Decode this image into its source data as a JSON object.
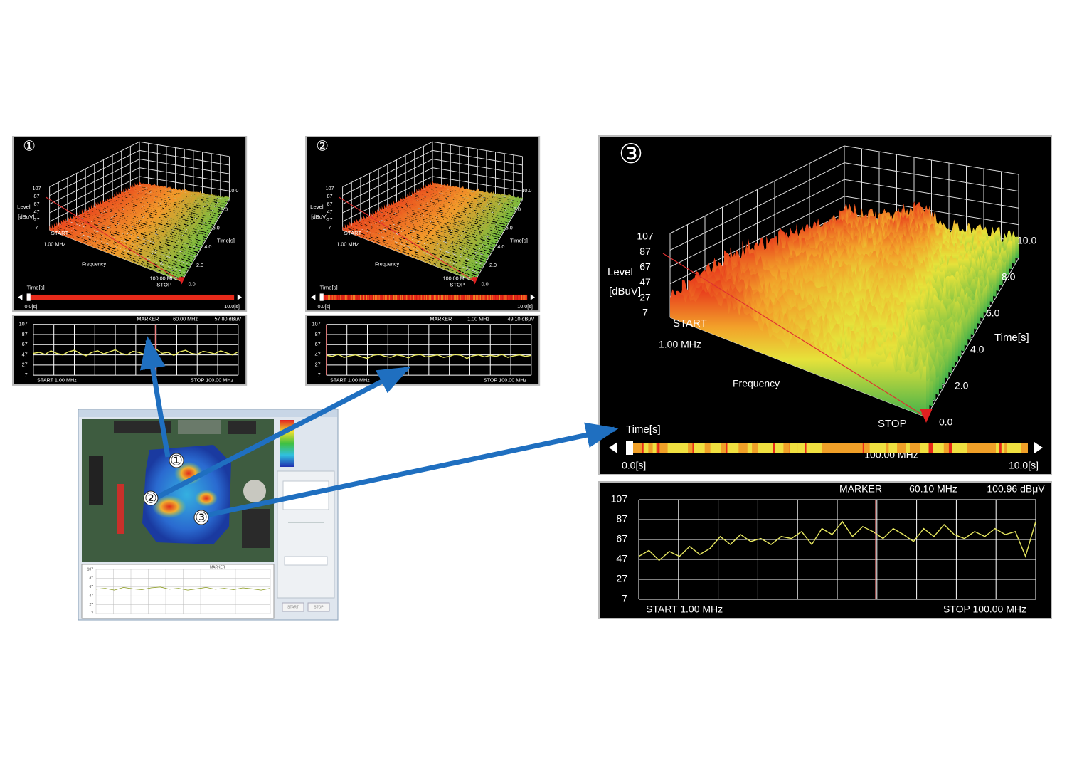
{
  "panels": [
    {
      "badge": "①",
      "level_label": "Level",
      "level_unit": "[dBuV]",
      "level_ticks": [
        107,
        87,
        67,
        47,
        27,
        7
      ],
      "start": "START",
      "start_freq": "1.00 MHz",
      "frequency_label": "Frequency",
      "stop": "STOP",
      "stop_freq": "100.00 MHz",
      "time_label": "Time[s]",
      "time_ticks": [
        {
          "value": 10,
          "label": "10.0"
        },
        {
          "value": 8,
          "label": "8.0"
        },
        {
          "value": 6,
          "label": "6.0"
        },
        {
          "value": 4,
          "label": "4.0"
        },
        {
          "value": 2,
          "label": "2.0"
        },
        {
          "value": 0,
          "label": "0.0"
        }
      ],
      "timebar_label": "Time[s]",
      "time_start": "0.0[s]",
      "time_end": "10.0[s]",
      "spectrum": {
        "marker": "MARKER",
        "marker_freq": {
          "value": 60,
          "label": "60.00 MHz"
        },
        "marker_level": "57.80 dBuV",
        "start": "START   1.00 MHz",
        "stop": "STOP   100.00 MHz",
        "xlim": [
          1,
          100
        ],
        "ylim": [
          7,
          107
        ],
        "yticks": [
          107,
          87,
          67,
          47,
          27,
          7
        ],
        "values": [
          50,
          52,
          48,
          55,
          50,
          47,
          53,
          56,
          50,
          45,
          52,
          55,
          49,
          53,
          57,
          50,
          47,
          54,
          52,
          48,
          55,
          58,
          50,
          52,
          46,
          53,
          56,
          50,
          48,
          54,
          52,
          49,
          55,
          51,
          47,
          53
        ]
      }
    },
    {
      "badge": "②",
      "level_label": "Level",
      "level_unit": "[dBuV]",
      "level_ticks": [
        107,
        87,
        67,
        47,
        27,
        7
      ],
      "start": "START",
      "start_freq": "1.00 MHz",
      "frequency_label": "Frequency",
      "stop": "STOP",
      "stop_freq": "100.00 MHz",
      "time_label": "Time[s]",
      "time_ticks": [
        {
          "value": 10,
          "label": "10.0"
        },
        {
          "value": 8,
          "label": "8.0"
        },
        {
          "value": 6,
          "label": "6.0"
        },
        {
          "value": 4,
          "label": "4.0"
        },
        {
          "value": 2,
          "label": "2.0"
        },
        {
          "value": 0,
          "label": "0.0"
        }
      ],
      "timebar_label": "Time[s]",
      "time_start": "0.0[s]",
      "time_end": "10.0[s]",
      "spectrum": {
        "marker": "MARKER",
        "marker_freq": {
          "value": 1,
          "label": "1.00 MHz"
        },
        "marker_level": "49.10 dBμV",
        "start": "START   1.00 MHz",
        "stop": "STOP   100.00 MHz",
        "xlim": [
          1,
          100
        ],
        "ylim": [
          7,
          107
        ],
        "yticks": [
          107,
          87,
          67,
          47,
          27,
          7
        ],
        "values": [
          46,
          44,
          48,
          42,
          45,
          47,
          43,
          40,
          46,
          48,
          44,
          42,
          47,
          45,
          41,
          46,
          48,
          43,
          45,
          47,
          42,
          44,
          48,
          46,
          40,
          45,
          47,
          43,
          46,
          44,
          48,
          42,
          45,
          47,
          44,
          46
        ]
      }
    },
    {
      "badge": "③",
      "level_label": "Level",
      "level_unit": "[dBuV]",
      "level_ticks": [
        107,
        87,
        67,
        47,
        27,
        7
      ],
      "start": "START",
      "start_freq": "1.00 MHz",
      "frequency_label": "Frequency",
      "stop": "STOP",
      "stop_freq": "100.00 MHz",
      "time_label": "Time[s]",
      "time_ticks": [
        {
          "value": 10,
          "label": "10.0"
        },
        {
          "value": 8,
          "label": "8.0"
        },
        {
          "value": 6,
          "label": "6.0"
        },
        {
          "value": 4,
          "label": "4.0"
        },
        {
          "value": 2,
          "label": "2.0"
        },
        {
          "value": 0,
          "label": "0.0"
        }
      ],
      "timebar_label": "Time[s]",
      "time_start": "0.0[s]",
      "time_end": "10.0[s]",
      "spectrum": {
        "marker": "MARKER",
        "marker_freq": {
          "value": 60.1,
          "label": "60.10 MHz"
        },
        "marker_level": "100.96 dBμV",
        "start": "START   1.00 MHz",
        "stop": "STOP   100.00 MHz",
        "xlim": [
          1,
          100
        ],
        "ylim": [
          7,
          107
        ],
        "yticks": [
          107,
          87,
          67,
          47,
          27,
          7
        ],
        "values": [
          50,
          56,
          46,
          55,
          50,
          60,
          52,
          58,
          70,
          62,
          72,
          65,
          68,
          62,
          70,
          68,
          75,
          62,
          78,
          72,
          85,
          70,
          80,
          75,
          68,
          78,
          72,
          65,
          78,
          70,
          82,
          72,
          68,
          75,
          70,
          78,
          72,
          75,
          50,
          85
        ]
      }
    }
  ],
  "pcb": {
    "markers": [
      "①",
      "②",
      "③"
    ],
    "buttons": [
      "START",
      "STOP"
    ],
    "mini_spectrum": {
      "marker": "MARKER",
      "ylim": [
        7,
        107
      ],
      "yticks": [
        107,
        87,
        67,
        47,
        27,
        7
      ],
      "values": [
        62,
        64,
        60,
        66,
        63,
        61,
        65,
        67,
        62,
        64,
        60,
        63,
        66,
        62,
        64,
        61,
        65,
        63,
        60,
        64
      ]
    }
  }
}
